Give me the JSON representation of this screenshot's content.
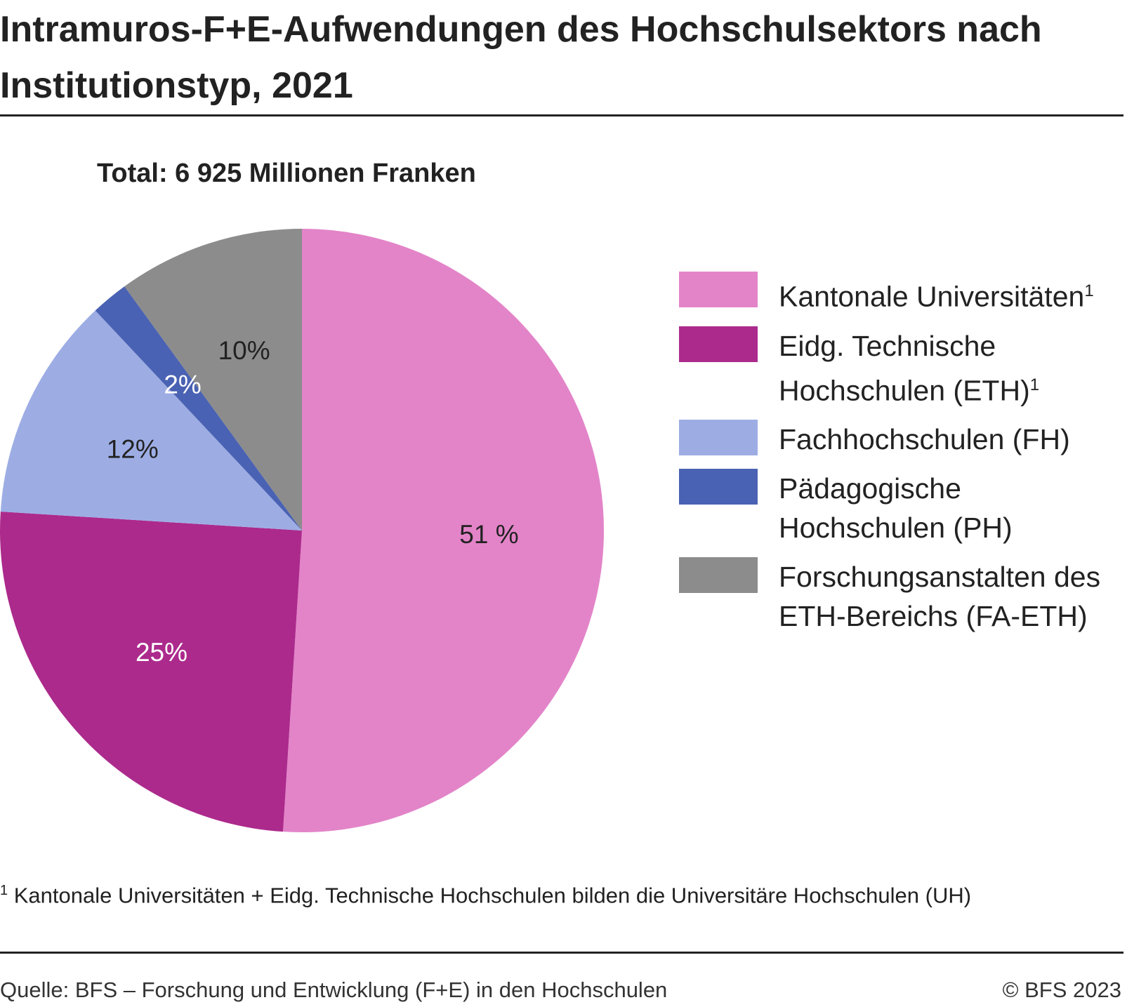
{
  "chart_data": {
    "type": "pie",
    "title": "Intramuros-F+E-Aufwendungen des Hochschulsektors nach Institutionstyp, 2021",
    "subtitle": "Total: 6 925 Millionen Franken",
    "categories": [
      "Kantonale Universitäten",
      "Eidg. Technische Hochschulen (ETH)",
      "Fachhochschulen (FH)",
      "Pädagogische Hochschulen (PH)",
      "Forschungsanstalten des ETH-Bereichs (FA-ETH)"
    ],
    "category_notes": [
      "1",
      "1",
      null,
      null,
      null
    ],
    "values": [
      51,
      25,
      12,
      2,
      10
    ],
    "value_labels": [
      "51 %",
      "25%",
      "12%",
      "2%",
      "10%"
    ],
    "colors": [
      "#e384c9",
      "#ac2a8c",
      "#9dade4",
      "#4a62b3",
      "#8c8c8c"
    ],
    "label_colors": [
      "#222222",
      "#ffffff",
      "#222222",
      "#ffffff",
      "#222222"
    ],
    "footnote_mark": "1",
    "footnote": "Kantonale Universitäten + Eidg. Technische Hochschulen bilden die Universitäre Hochschulen (UH)",
    "source": "Quelle: BFS – Forschung und Entwicklung (F+E) in den Hochschulen",
    "copyright": "© BFS 2023"
  }
}
